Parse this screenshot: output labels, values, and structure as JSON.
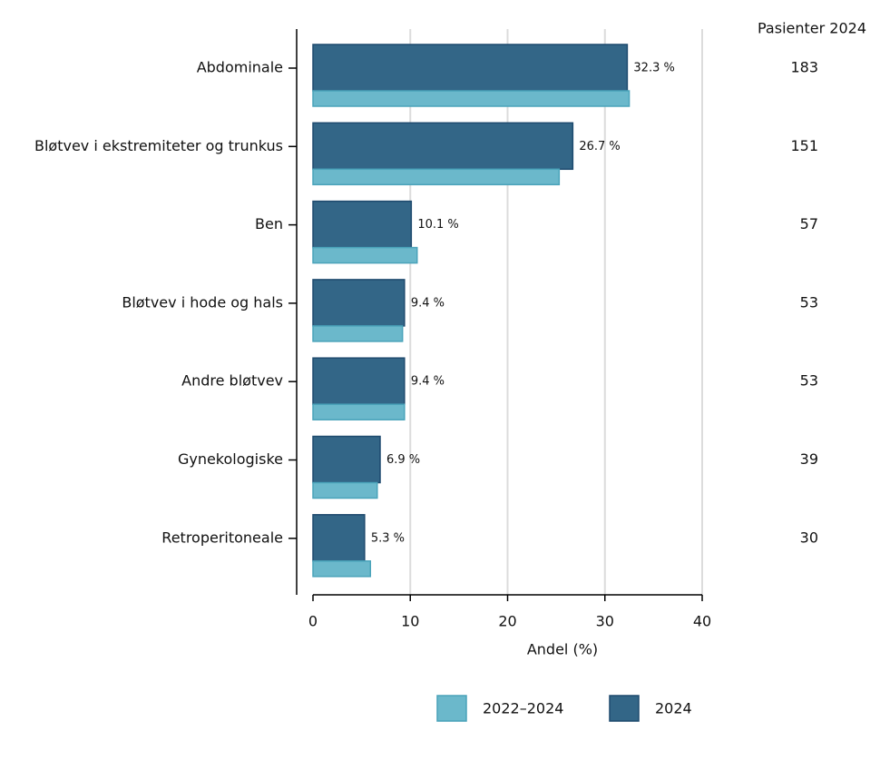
{
  "chart_data": {
    "type": "bar",
    "orientation": "horizontal",
    "categories": [
      "Abdominale",
      "Bløtvev i ekstremiteter og trunkus",
      "Ben",
      "Bløtvev i hode og hals",
      "Andre bløtvev",
      "Gynekologiske",
      "Retroperitoneale"
    ],
    "series": [
      {
        "name": "2022–2024",
        "color": "#6bb8cb",
        "values": [
          32.5,
          25.3,
          10.7,
          9.2,
          9.4,
          6.6,
          5.9
        ]
      },
      {
        "name": "2024",
        "color": "#336687",
        "values": [
          32.3,
          26.7,
          10.1,
          9.4,
          9.4,
          6.9,
          5.3
        ],
        "value_labels": [
          "32.3 %",
          "26.7 %",
          "10.1 %",
          "9.4 %",
          "9.4 %",
          "6.9 %",
          "5.3 %"
        ]
      }
    ],
    "xlabel": "Andel (%)",
    "xlim": [
      0,
      40
    ],
    "xticks": [
      0,
      10,
      20,
      30,
      40
    ],
    "grid": true,
    "patients_title": "Pasienter 2024",
    "patients": [
      183,
      151,
      57,
      53,
      53,
      39,
      30
    ],
    "legend": "bottom"
  }
}
